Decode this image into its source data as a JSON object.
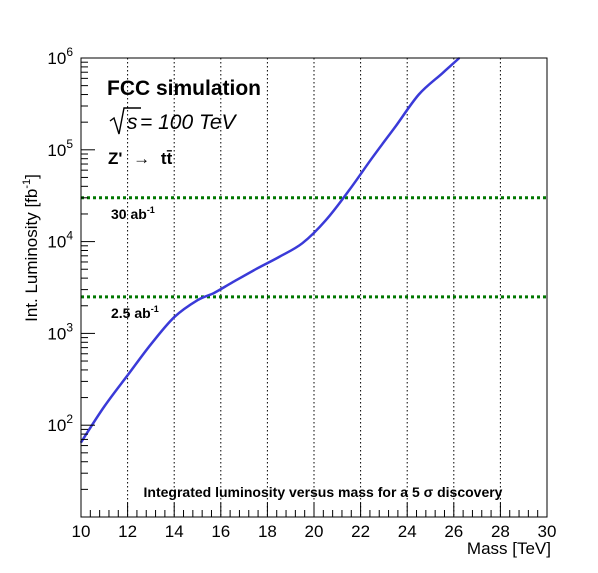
{
  "chart_data": {
    "type": "line",
    "title": "",
    "xlabel": "Mass [TeV]",
    "ylabel_main": "Int. Luminosity [fb",
    "ylabel_sup": "-1",
    "ylabel_close": "]",
    "xlim": [
      10,
      30
    ],
    "ylim": [
      10,
      1000000
    ],
    "yscale": "log",
    "grid": "vertical dotted lines at major x ticks",
    "x_ticks": [
      "10",
      "12",
      "14",
      "16",
      "18",
      "20",
      "22",
      "24",
      "26",
      "28",
      "30"
    ],
    "y_ticks": [
      {
        "base": "10",
        "exp": "2",
        "value": 100
      },
      {
        "base": "10",
        "exp": "3",
        "value": 1000
      },
      {
        "base": "10",
        "exp": "4",
        "value": 10000
      },
      {
        "base": "10",
        "exp": "5",
        "value": 100000
      },
      {
        "base": "10",
        "exp": "6",
        "value": 1000000
      }
    ],
    "series": [
      {
        "color": "#3a3ad8",
        "x": [
          10.0,
          11.0,
          12.0,
          13.0,
          14.0,
          15.0,
          15.7,
          16.5,
          17.5,
          18.5,
          19.5,
          20.5,
          21.5,
          22.5,
          23.5,
          24.5,
          25.5,
          26.5
        ],
        "y": [
          65,
          160,
          350,
          760,
          1500,
          2300,
          2750,
          3600,
          5000,
          6800,
          9600,
          17000,
          36000,
          82000,
          180000,
          400000,
          680000,
          1150000
        ]
      }
    ],
    "reference_lines": [
      {
        "value": 30000,
        "color": "#007700",
        "label": "30 ab",
        "label_sup": "-1"
      },
      {
        "value": 2500,
        "color": "#007700",
        "label": "2.5 ab",
        "label_sup": "-1"
      }
    ],
    "annotations": {
      "experiment": "FCC simulation",
      "energy_sqrt": "s",
      "energy_rest": " = 100 TeV",
      "process_prefix": "Z'",
      "process_arrow": "→",
      "process_suffix": "tt̄",
      "caption": "Integrated luminosity versus mass for a 5 σ discovery"
    }
  }
}
